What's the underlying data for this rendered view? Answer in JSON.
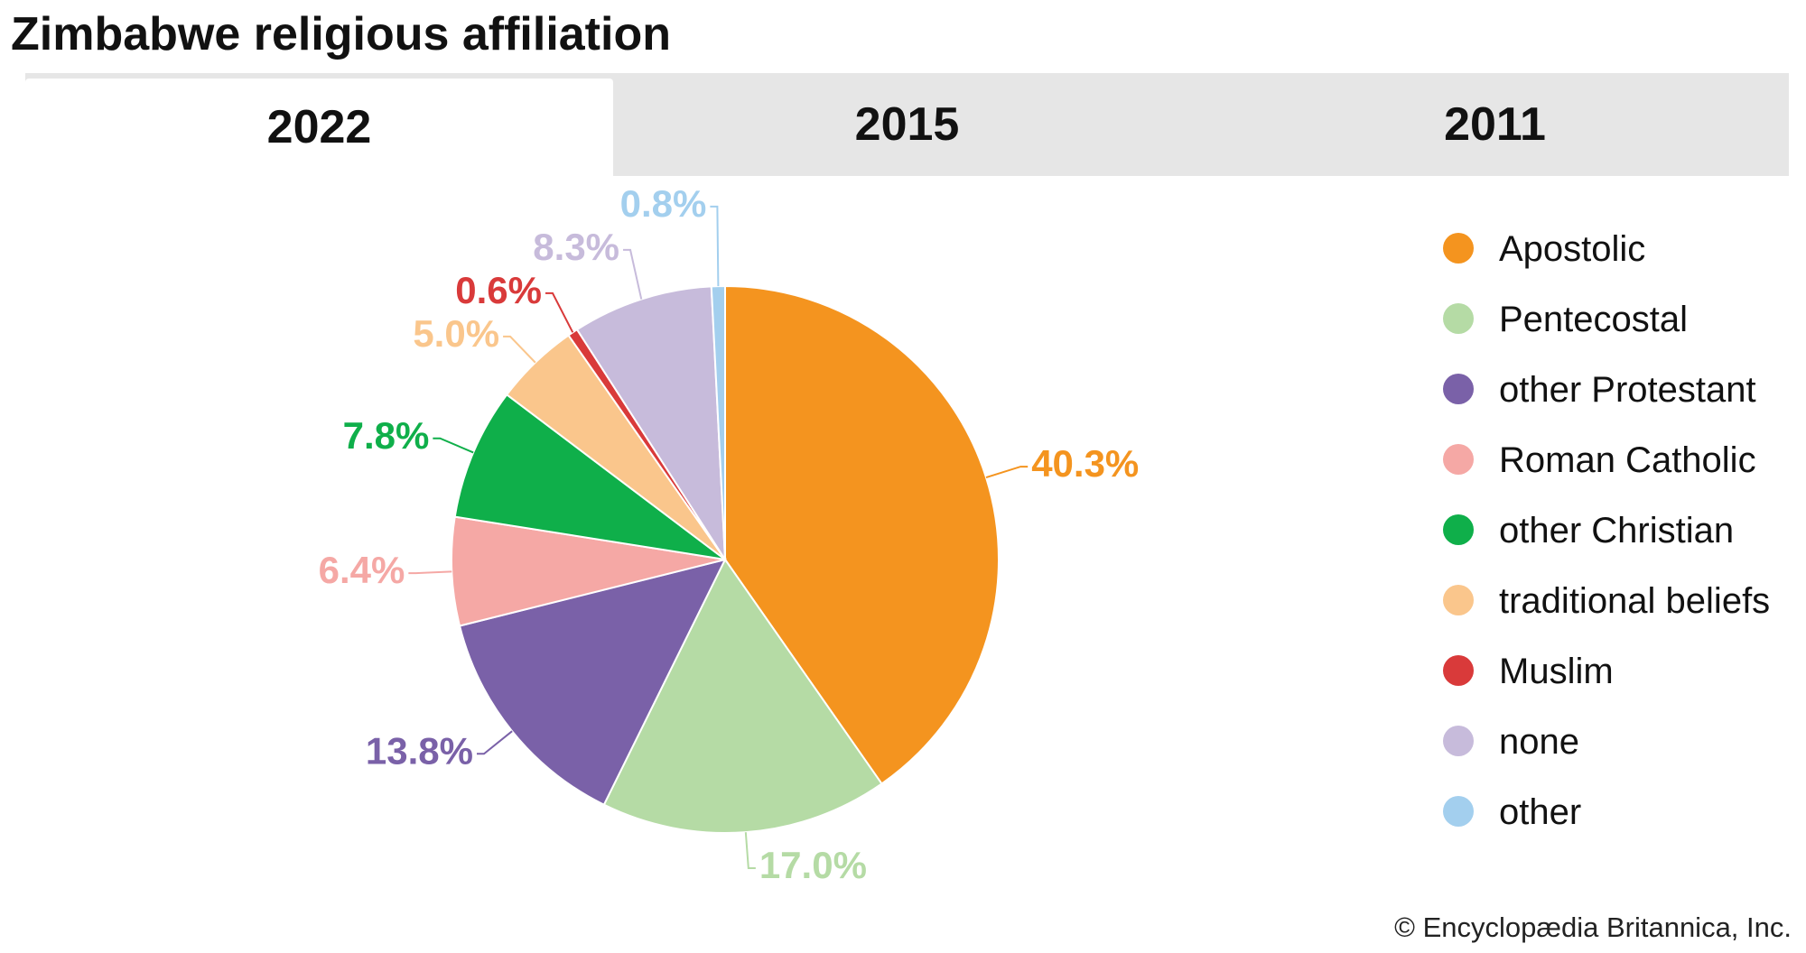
{
  "chart_data": {
    "type": "pie",
    "title": "Zimbabwe religious affiliation",
    "categories": [
      "Apostolic",
      "Pentecostal",
      "other Protestant",
      "Roman Catholic",
      "other Christian",
      "traditional beliefs",
      "Muslim",
      "none",
      "other"
    ],
    "values": [
      40.3,
      17.0,
      13.8,
      6.4,
      7.8,
      5.0,
      0.6,
      8.3,
      0.8
    ],
    "value_labels": [
      "40.3%",
      "17.0%",
      "13.8%",
      "6.4%",
      "7.8%",
      "5.0%",
      "0.6%",
      "8.3%",
      "0.8%"
    ],
    "colors": [
      "#f4941f",
      "#b5dba5",
      "#7a61a8",
      "#f5a8a5",
      "#0faf4a",
      "#fac68c",
      "#d93a3a",
      "#c7bbdb",
      "#a3cfee"
    ],
    "legend": "right"
  },
  "tabs": [
    "2022",
    "2015",
    "2011"
  ],
  "credit": "© Encyclopædia Britannica, Inc."
}
